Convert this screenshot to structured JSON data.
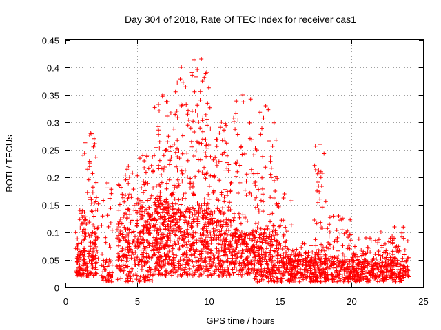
{
  "chart_data": {
    "type": "scatter",
    "title": "Day 304 of 2018, Rate Of TEC Index for receiver cas1",
    "xlabel": "GPS time / hours",
    "ylabel": "ROTI / TECUs",
    "xlim": [
      0,
      25
    ],
    "ylim": [
      0,
      0.45
    ],
    "xticks": [
      0,
      5,
      10,
      15,
      20,
      25
    ],
    "yticks": [
      0,
      0.05,
      0.1,
      0.15,
      0.2,
      0.25,
      0.3,
      0.35,
      0.4,
      0.45
    ],
    "grid": true,
    "marker": "+",
    "color": "#ff0000",
    "clusters": [
      {
        "x": [
          0.7,
          1.3
        ],
        "base": [
          0.02,
          0.06
        ],
        "peak": 0.14,
        "n": 60
      },
      {
        "x": [
          1.2,
          2.3
        ],
        "base": [
          0.02,
          0.1
        ],
        "peak": 0.28,
        "n": 160
      },
      {
        "x": [
          2.5,
          3.3
        ],
        "base": [
          0.01,
          0.05
        ],
        "peak": 0.19,
        "n": 60
      },
      {
        "x": [
          3.6,
          5.2
        ],
        "base": [
          0.01,
          0.1
        ],
        "peak": 0.22,
        "n": 200
      },
      {
        "x": [
          5.2,
          6.2
        ],
        "base": [
          0.01,
          0.12
        ],
        "peak": 0.24,
        "n": 170
      },
      {
        "x": [
          6.2,
          7.4
        ],
        "base": [
          0.02,
          0.15
        ],
        "peak": 0.35,
        "n": 260
      },
      {
        "x": [
          7.4,
          8.8
        ],
        "base": [
          0.02,
          0.14
        ],
        "peak": 0.4,
        "n": 240
      },
      {
        "x": [
          8.8,
          10.2
        ],
        "base": [
          0.02,
          0.14
        ],
        "peak": 0.415,
        "n": 260
      },
      {
        "x": [
          10.2,
          11.6
        ],
        "base": [
          0.02,
          0.12
        ],
        "peak": 0.3,
        "n": 220
      },
      {
        "x": [
          11.6,
          13.2
        ],
        "base": [
          0.02,
          0.1
        ],
        "peak": 0.35,
        "n": 220
      },
      {
        "x": [
          13.2,
          14.8
        ],
        "base": [
          0.01,
          0.1
        ],
        "peak": 0.33,
        "n": 240
      },
      {
        "x": [
          14.8,
          15.8
        ],
        "base": [
          0.01,
          0.06
        ],
        "peak": 0.17,
        "n": 120
      },
      {
        "x": [
          15.8,
          17.4
        ],
        "base": [
          0.01,
          0.05
        ],
        "peak": 0.08,
        "n": 160
      },
      {
        "x": [
          17.4,
          18.2
        ],
        "base": [
          0.01,
          0.06
        ],
        "peak": 0.26,
        "n": 120
      },
      {
        "x": [
          18.2,
          20.0
        ],
        "base": [
          0.01,
          0.05
        ],
        "peak": 0.13,
        "n": 170
      },
      {
        "x": [
          20.0,
          22.0
        ],
        "base": [
          0.01,
          0.045
        ],
        "peak": 0.09,
        "n": 200
      },
      {
        "x": [
          22.0,
          24.0
        ],
        "base": [
          0.01,
          0.045
        ],
        "peak": 0.11,
        "n": 200
      }
    ]
  }
}
